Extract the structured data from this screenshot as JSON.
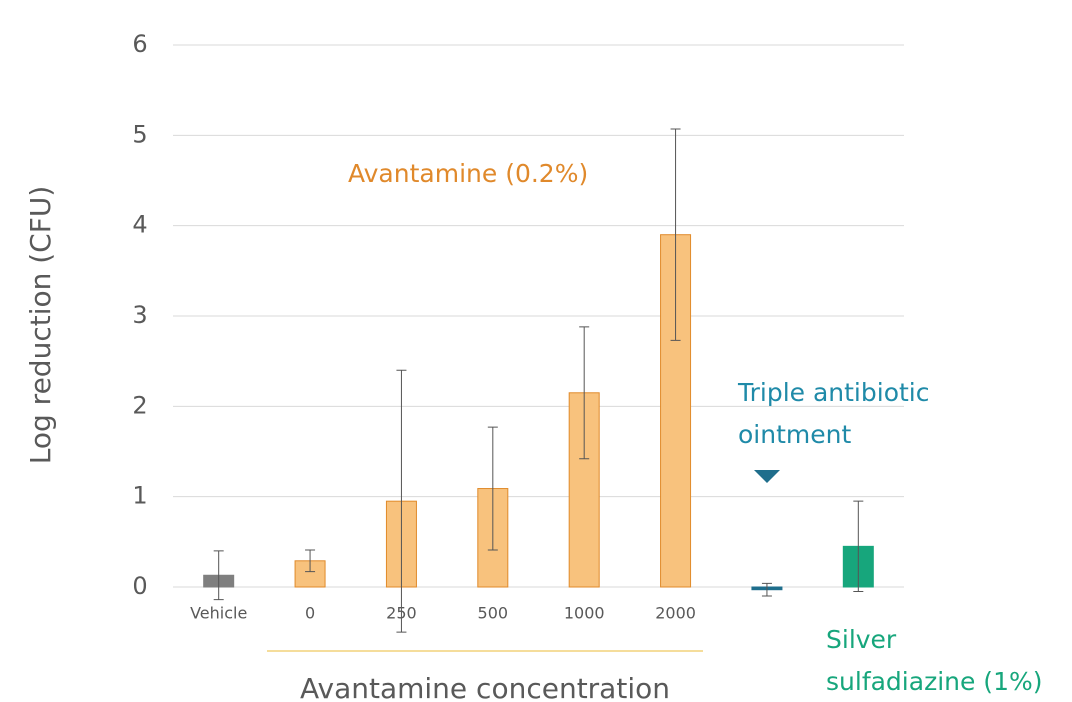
{
  "chart_data": {
    "type": "bar",
    "y_label": "Log reduction (CFU)",
    "x_label": "Avantamine concentration",
    "categories": [
      "Vehicle",
      "0",
      "250",
      "500",
      "1000",
      "2000",
      null,
      null
    ],
    "values": [
      0.13,
      0.29,
      0.95,
      1.09,
      2.15,
      3.9,
      -0.03,
      0.45
    ],
    "errors": [
      0.27,
      0.12,
      1.45,
      0.68,
      0.73,
      1.17,
      0.07,
      0.5
    ],
    "colors": [
      "#7f7f7f",
      "#f8c27d",
      "#f8c27d",
      "#f8c27d",
      "#f8c27d",
      "#f8c27d",
      "#1f6e8c",
      "#17a67c"
    ],
    "ylim": [
      -0.6,
      6
    ],
    "yticks": [
      0,
      1,
      2,
      3,
      4,
      5,
      6
    ],
    "grid": true,
    "annotations": [
      {
        "lines": [
          "Avantamine (0.2%)"
        ],
        "color": "#e0892b"
      },
      {
        "lines": [
          "Triple antibiotic",
          "ointment"
        ],
        "color": "#1f8aa8"
      },
      {
        "lines": [
          "Silver",
          "sulfadiazine (1%)"
        ],
        "color": "#17a67c"
      }
    ]
  }
}
